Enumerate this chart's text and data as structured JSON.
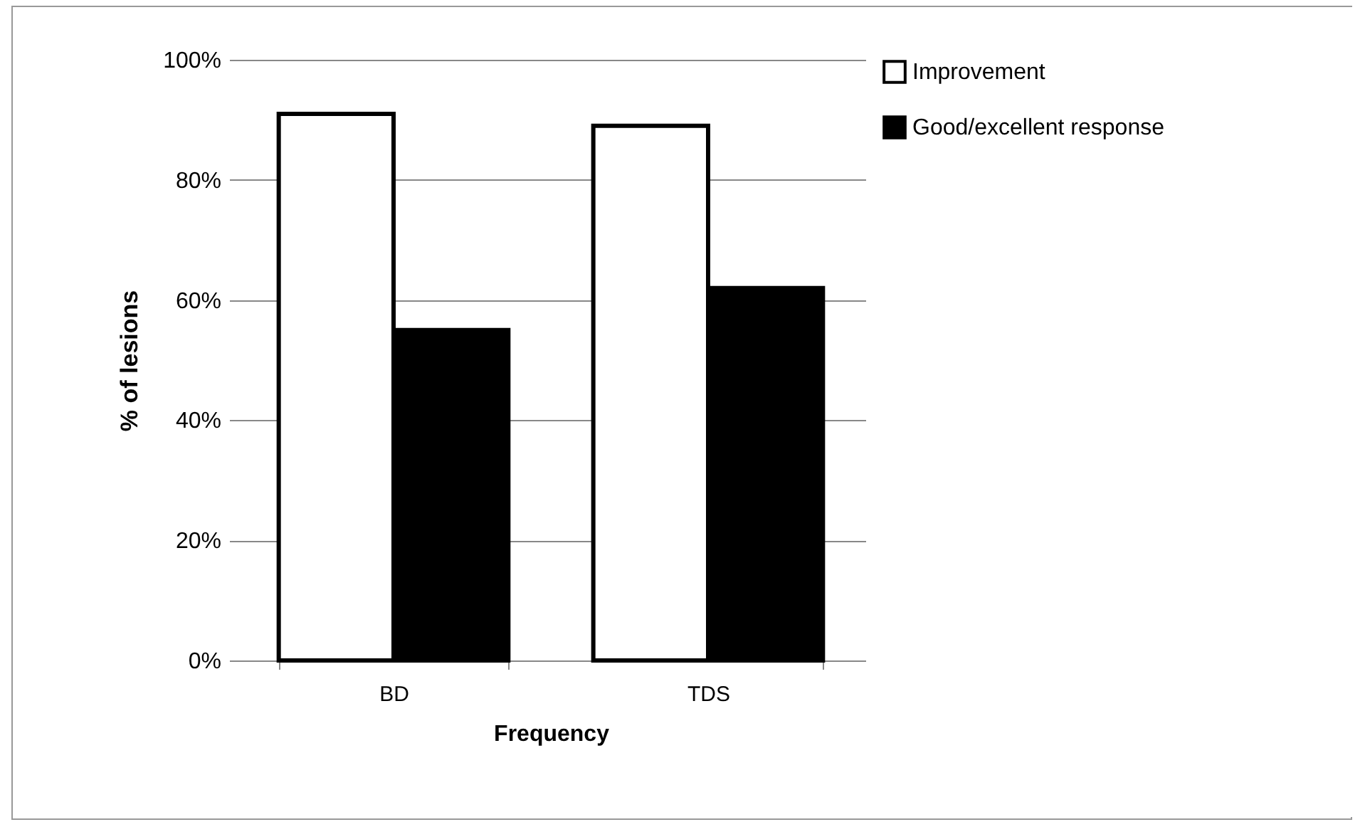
{
  "chart_data": {
    "type": "bar",
    "xlabel": "Frequency",
    "ylabel": "% of lesions",
    "categories": [
      "BD",
      "TDS"
    ],
    "series": [
      {
        "name": "Improvement",
        "color": "#ffffff",
        "values": [
          91,
          89
        ]
      },
      {
        "name": "Good/excellent response",
        "color": "#000000",
        "values": [
          55,
          62
        ]
      }
    ],
    "ylim": [
      0,
      100
    ],
    "yticks": [
      {
        "value": 0,
        "label": "0%"
      },
      {
        "value": 20,
        "label": "20%"
      },
      {
        "value": 40,
        "label": "40%"
      },
      {
        "value": 60,
        "label": "60%"
      },
      {
        "value": 80,
        "label": "80%"
      },
      {
        "value": 100,
        "label": "100%"
      }
    ],
    "grid": "y",
    "legend": "right"
  }
}
